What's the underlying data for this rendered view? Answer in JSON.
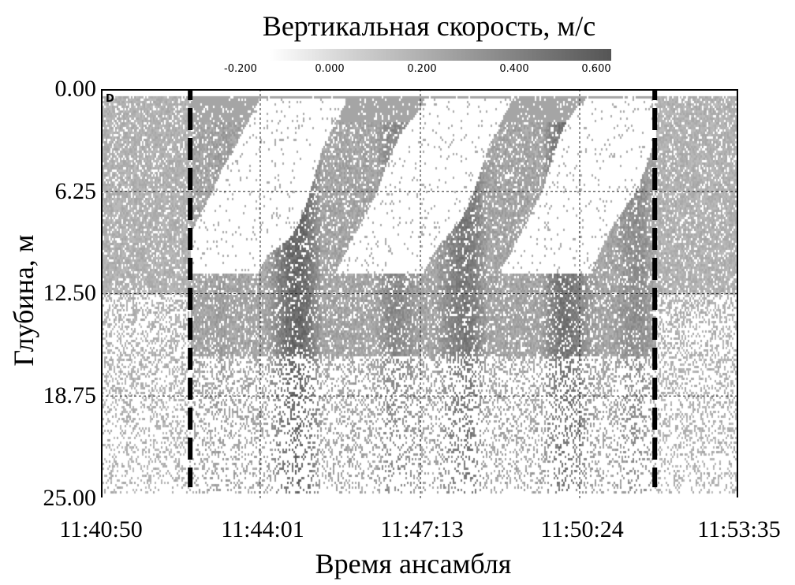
{
  "chart_data": {
    "type": "heatmap",
    "title": "Вертикальная скорость, м/с",
    "xlabel": "Время ансамбля",
    "ylabel": "Глубина, м",
    "x_ticks": [
      "11:40:50",
      "11:44:01",
      "11:47:13",
      "11:50:24",
      "11:53:35"
    ],
    "xlim": [
      "11:40:50",
      "11:53:35"
    ],
    "y_ticks": [
      "0.00",
      "6.25",
      "12.50",
      "18.75",
      "25.00"
    ],
    "ylim": [
      0,
      25
    ],
    "y_inverted": true,
    "grid": true,
    "colorbar": {
      "ticks": [
        "-0.200",
        "0.000",
        "0.200",
        "0.400",
        "0.600"
      ],
      "range": [
        -0.2,
        0.6
      ],
      "colors": [
        "#ffffff",
        "#555555"
      ],
      "placement": "top"
    },
    "panel_label": "D",
    "marker_lines": [
      {
        "time": "11:42:37",
        "style": "dashed",
        "color": "#000000"
      },
      {
        "time": "11:51:54",
        "style": "dashed",
        "color": "#000000"
      }
    ]
  }
}
